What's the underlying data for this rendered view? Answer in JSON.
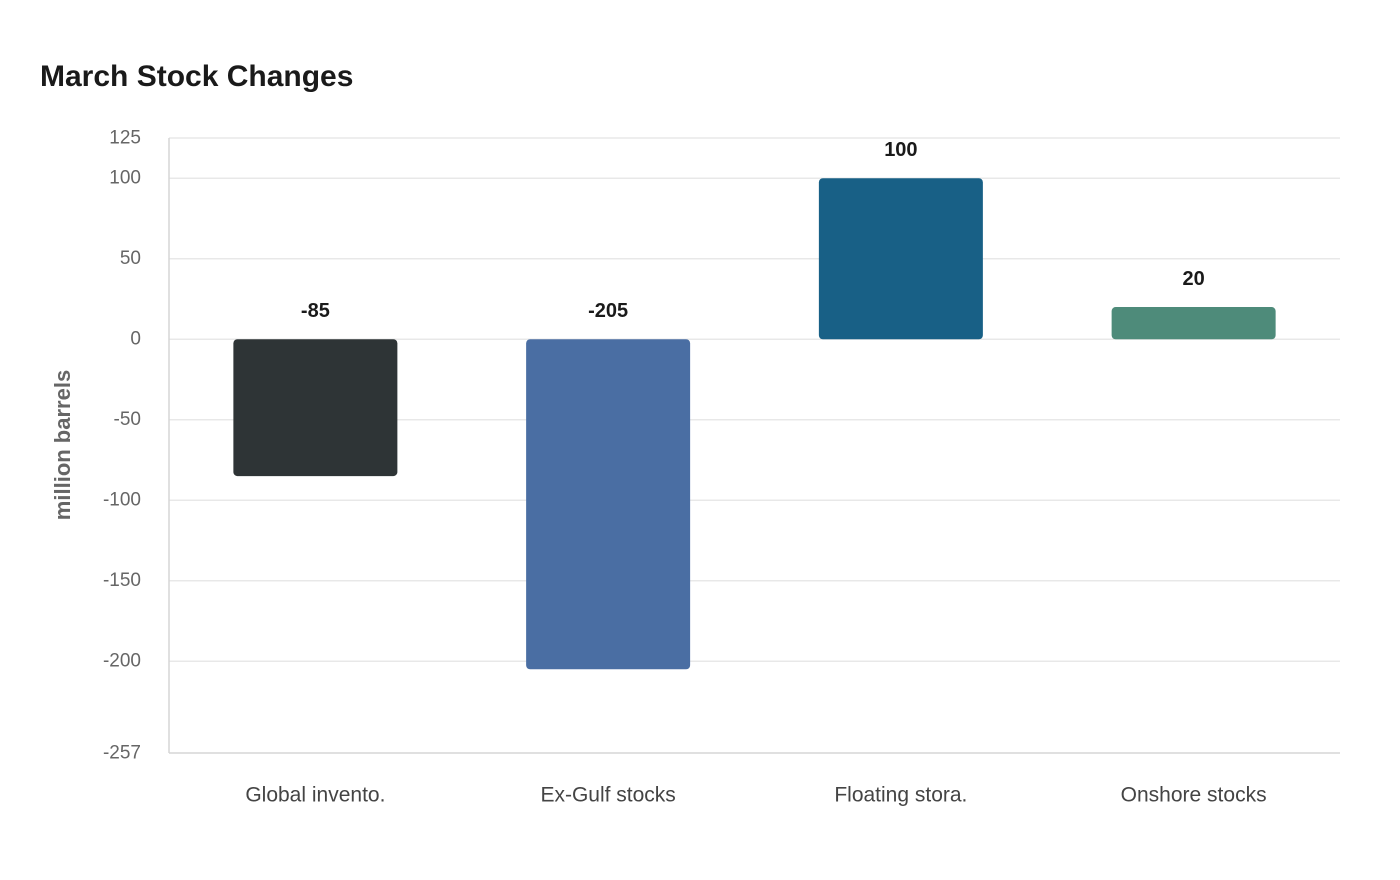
{
  "chart_data": {
    "type": "bar",
    "title": "March Stock Changes",
    "ylabel": "million barrels",
    "xlabel": "",
    "categories": [
      "Global invento.",
      "Ex-Gulf stocks",
      "Floating stora.",
      "Onshore stocks"
    ],
    "values": [
      -85,
      -205,
      100,
      20
    ],
    "value_labels": [
      "-85",
      "-205",
      "100",
      "20"
    ],
    "colors": [
      "#2e3436",
      "#4a6ea3",
      "#186086",
      "#4e8b7a"
    ],
    "ylim": [
      -257,
      125
    ],
    "yticks": [
      125,
      100,
      50,
      0,
      -50,
      -100,
      -150,
      -200,
      -257
    ],
    "ytick_labels": [
      "125",
      "100",
      "50",
      "0",
      "-50",
      "-100",
      "-150",
      "-200",
      "-257"
    ],
    "grid": true,
    "legend": "none"
  }
}
